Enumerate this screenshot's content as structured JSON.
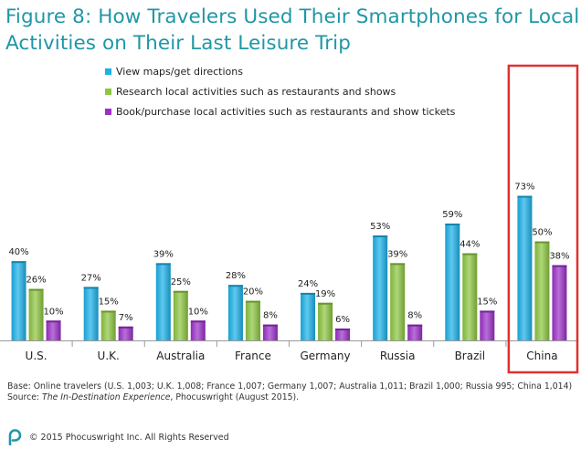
{
  "title_line1": "Figure 8: How Travelers Used Their Smartphones for Local",
  "title_line2": "Activities on Their Last Leisure Trip",
  "footnote": {
    "base": "Base: Online travelers (U.S. 1,003; U.K. 1,008; France 1,007; Germany 1,007; Australia 1,011; Brazil 1,000; Russia 995; China 1,014)",
    "source_prefix": "Source: ",
    "source_italic": "The In-Destination Experience",
    "source_suffix": ", Phocuswright (August 2015)."
  },
  "copyright": "© 2015 Phocuswright Inc. All Rights Reserved",
  "logo_icon": "phocuswright-logo-icon",
  "chart_data": {
    "type": "bar",
    "categories": [
      "U.S.",
      "U.K.",
      "Australia",
      "France",
      "Germany",
      "Russia",
      "Brazil",
      "China"
    ],
    "series": [
      {
        "name": "View maps/get directions",
        "values": [
          40,
          27,
          39,
          28,
          24,
          53,
          59,
          73
        ],
        "color": "#1ab1e8"
      },
      {
        "name": "Research local activities such as restaurants and shows",
        "values": [
          26,
          15,
          25,
          20,
          19,
          39,
          44,
          50
        ],
        "color": "#8cc63f"
      },
      {
        "name": "Book/purchase local activities such as restaurants and show tickets",
        "values": [
          10,
          7,
          10,
          8,
          6,
          8,
          15,
          38
        ],
        "color": "#9b30c9"
      }
    ],
    "value_suffix": "%",
    "legend_position": "top",
    "highlight_category": "China",
    "highlight_color": "#e0312f",
    "grid": false
  }
}
